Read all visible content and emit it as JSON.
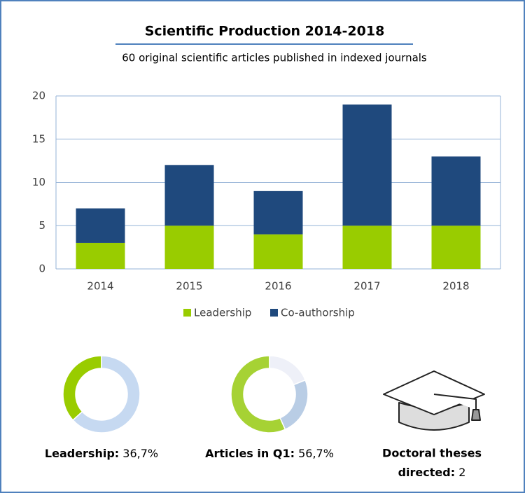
{
  "chart_data": [
    {
      "type": "bar",
      "stacked": true,
      "title": "Scientific Production  2014-2018",
      "subtitle": "60 original scientific articles published in indexed journals",
      "categories": [
        "2014",
        "2015",
        "2016",
        "2017",
        "2018"
      ],
      "series": [
        {
          "name": "Leadership",
          "color": "#99cc00",
          "values": [
            3,
            5,
            4,
            5,
            5
          ]
        },
        {
          "name": "Co-authorship",
          "color": "#1f497d",
          "values": [
            4,
            7,
            5,
            14,
            8
          ]
        }
      ],
      "ylim": [
        0,
        20
      ],
      "yticks": [
        0,
        5,
        10,
        15,
        20
      ],
      "grid": true,
      "legend": "bottom"
    },
    {
      "type": "pie",
      "donut": true,
      "label": "Leadership:",
      "values": [
        36.7,
        63.3
      ],
      "value_labels": [
        "36,7%",
        null
      ],
      "colors": [
        "#99cc00",
        "#c6d9f1"
      ]
    },
    {
      "type": "pie",
      "donut": true,
      "label": "Articles in Q1:",
      "values": [
        56.7,
        24.3,
        19
      ],
      "value_labels": [
        "56,7%",
        null,
        null
      ],
      "colors": [
        "#a6d234",
        "#b9cde5",
        "#eef0f8"
      ]
    }
  ],
  "theses": {
    "label_lines": [
      "Doctoral theses",
      "directed:"
    ],
    "value": 2
  }
}
